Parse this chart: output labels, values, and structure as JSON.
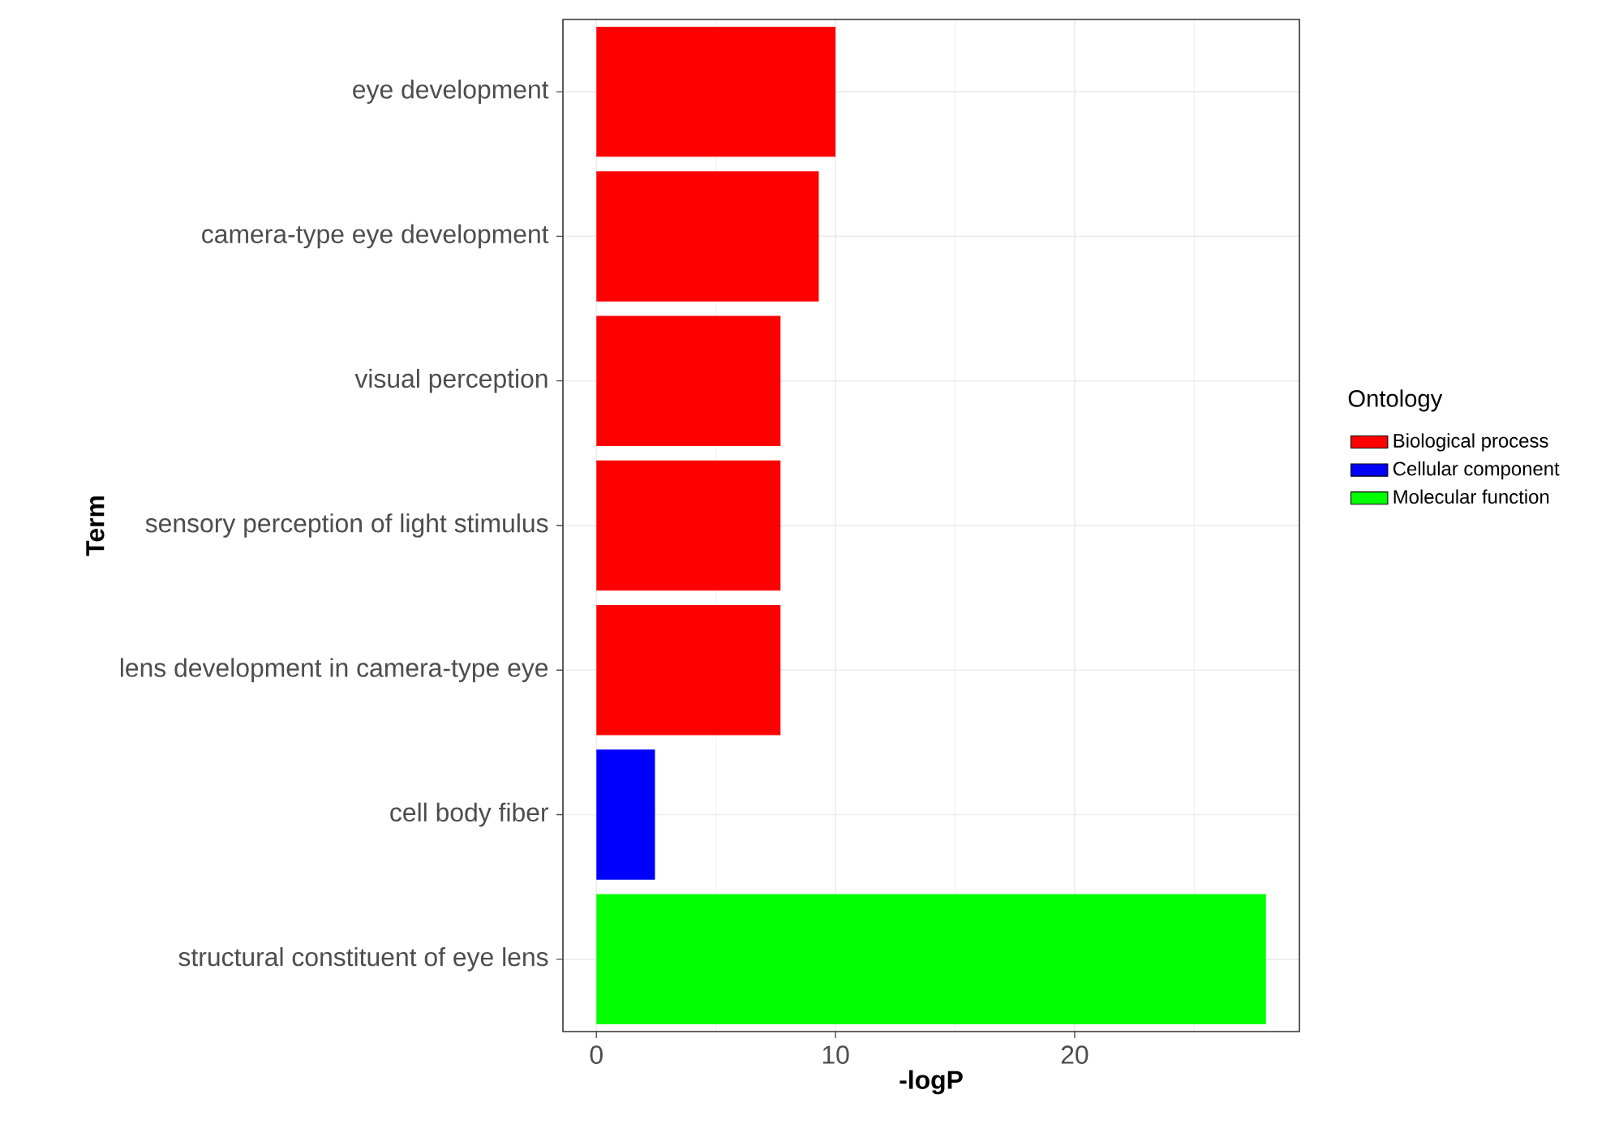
{
  "chart_data": {
    "type": "bar",
    "orientation": "horizontal",
    "xlabel": "-logP",
    "ylabel": "Term",
    "legend_title": "Ontology",
    "categories": [
      "eye development",
      "camera-type eye development",
      "visual perception",
      "sensory perception of light stimulus",
      "lens development in camera-type eye",
      "cell body fiber",
      "structural constituent of eye lens"
    ],
    "series": [
      {
        "name": "Biological process",
        "color": "#ff0000",
        "values": [
          10.0,
          9.3,
          7.7,
          7.7,
          7.7,
          null,
          null
        ]
      },
      {
        "name": "Cellular component",
        "color": "#0000ff",
        "values": [
          null,
          null,
          null,
          null,
          null,
          2.45,
          null
        ]
      },
      {
        "name": "Molecular function",
        "color": "#00ff00",
        "values": [
          null,
          null,
          null,
          null,
          null,
          null,
          28.0
        ]
      }
    ],
    "xlim": [
      -1.4,
      29.4
    ],
    "xticks": [
      0,
      10,
      20
    ],
    "grid": true,
    "legend": "right"
  }
}
